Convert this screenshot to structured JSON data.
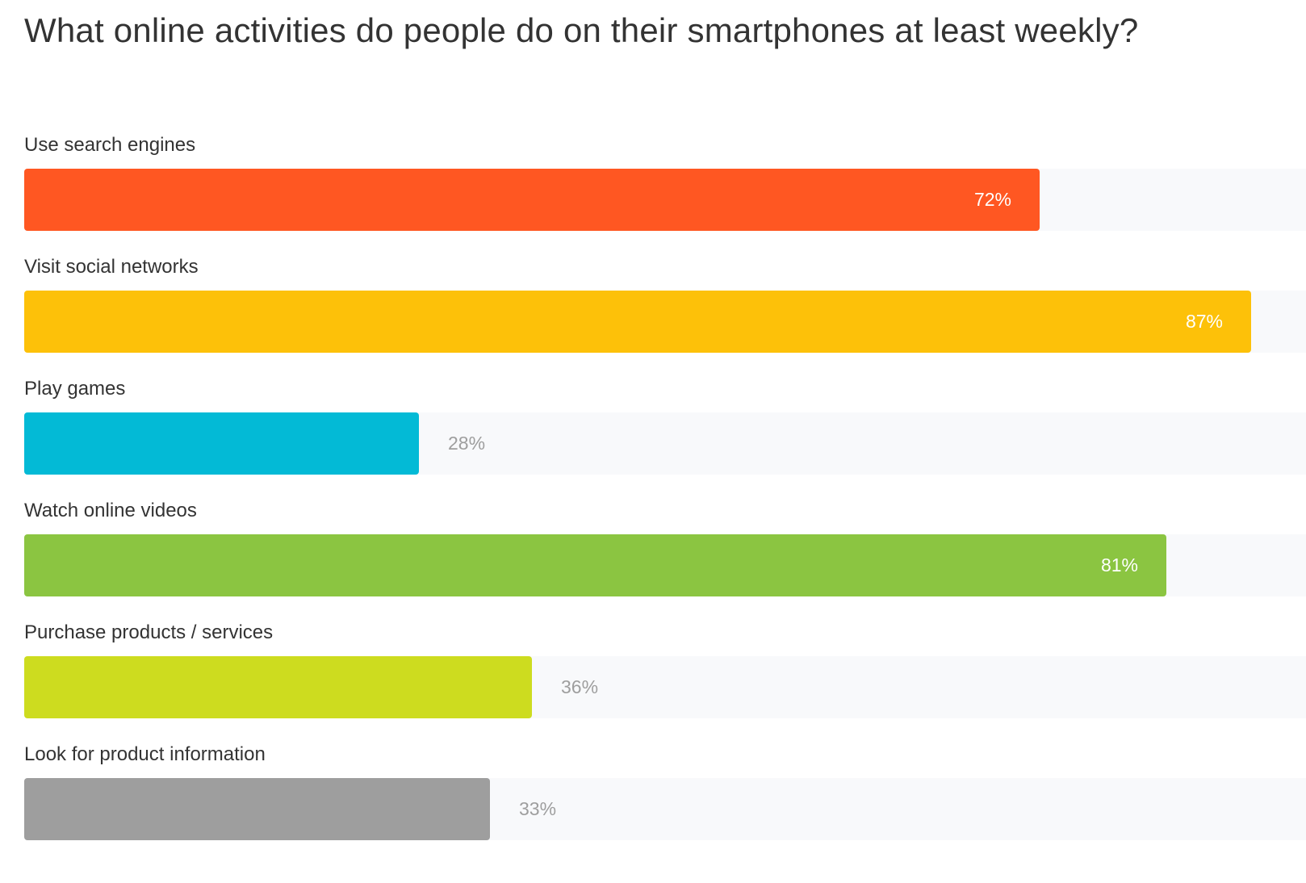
{
  "chart_data": {
    "type": "bar",
    "orientation": "horizontal",
    "title": "What online activities do people do on their smartphones at least weekly?",
    "categories": [
      "Use search engines",
      "Visit social networks",
      "Play games",
      "Watch online videos",
      "Purchase products / services",
      "Look for product information"
    ],
    "values": [
      72,
      87,
      28,
      81,
      36,
      33
    ],
    "value_labels": [
      "72%",
      "87%",
      "28%",
      "81%",
      "36%",
      "33%"
    ],
    "colors": [
      "#ff5722",
      "#fdc109",
      "#03bad6",
      "#8bc541",
      "#cddc1f",
      "#9e9e9e"
    ],
    "xlim": [
      0,
      87
    ],
    "grid": false,
    "legend": "none"
  }
}
